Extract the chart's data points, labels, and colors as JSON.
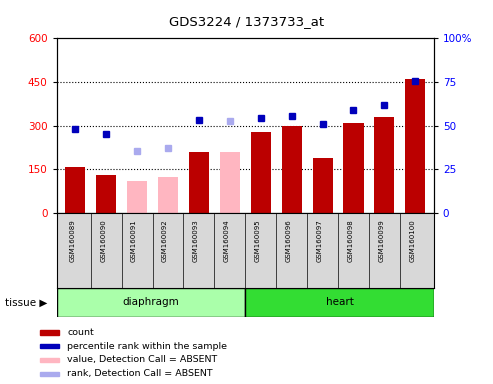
{
  "title": "GDS3224 / 1373733_at",
  "samples": [
    "GSM160089",
    "GSM160090",
    "GSM160091",
    "GSM160092",
    "GSM160093",
    "GSM160094",
    "GSM160095",
    "GSM160096",
    "GSM160097",
    "GSM160098",
    "GSM160099",
    "GSM160100"
  ],
  "bar_values": [
    160,
    130,
    null,
    null,
    210,
    null,
    280,
    300,
    190,
    310,
    330,
    460
  ],
  "bar_absent_values": [
    null,
    null,
    110,
    125,
    null,
    210,
    null,
    null,
    null,
    null,
    null,
    null
  ],
  "blue_squares_left": [
    290,
    270,
    null,
    null,
    320,
    null,
    325,
    335,
    305,
    355,
    370,
    455
  ],
  "blue_absent_squares_left": [
    null,
    null,
    215,
    225,
    null,
    315,
    null,
    null,
    null,
    null,
    null,
    null
  ],
  "ylim_left": [
    0,
    600
  ],
  "ylim_right": [
    0,
    100
  ],
  "yticks_left": [
    0,
    150,
    300,
    450,
    600
  ],
  "yticks_right": [
    0,
    25,
    50,
    75,
    100
  ],
  "bar_color_present": "#BB0000",
  "bar_color_absent": "#FFB6C1",
  "square_color_present": "#0000BB",
  "square_color_absent": "#AAAAEE",
  "diaphragm_color": "#AAFFAA",
  "heart_color": "#33DD33",
  "diaphragm_count": 6,
  "heart_count": 6,
  "legend_items": [
    {
      "label": "count",
      "color": "#BB0000"
    },
    {
      "label": "percentile rank within the sample",
      "color": "#0000BB"
    },
    {
      "label": "value, Detection Call = ABSENT",
      "color": "#FFB6C1"
    },
    {
      "label": "rank, Detection Call = ABSENT",
      "color": "#AAAAEE"
    }
  ]
}
